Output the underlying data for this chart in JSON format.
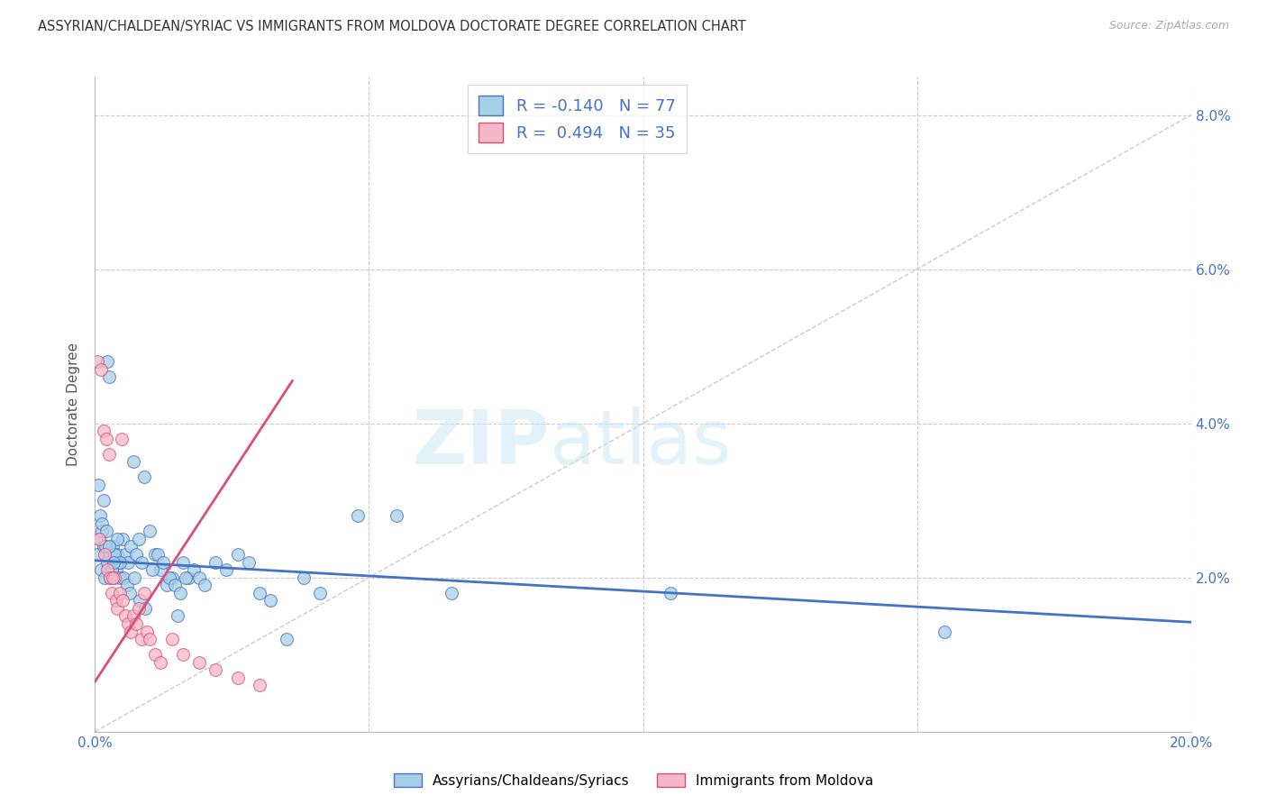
{
  "title": "ASSYRIAN/CHALDEAN/SYRIAC VS IMMIGRANTS FROM MOLDOVA DOCTORATE DEGREE CORRELATION CHART",
  "source": "Source: ZipAtlas.com",
  "ylabel": "Doctorate Degree",
  "blue_color": "#a8cfe8",
  "pink_color": "#f4b8c8",
  "trend_blue": "#4472c4",
  "trend_pink": "#d94f7a",
  "xlim": [
    0,
    20
  ],
  "ylim": [
    0,
    8.5
  ],
  "legend1_r": "R = -0.140",
  "legend1_n": "N = 77",
  "legend2_r": "R =  0.494",
  "legend2_n": "N = 35",
  "blue_scatter_x": [
    0.05,
    0.08,
    0.1,
    0.12,
    0.15,
    0.18,
    0.22,
    0.25,
    0.28,
    0.3,
    0.32,
    0.35,
    0.38,
    0.4,
    0.42,
    0.45,
    0.5,
    0.55,
    0.6,
    0.65,
    0.7,
    0.75,
    0.8,
    0.85,
    0.9,
    1.0,
    1.1,
    1.2,
    1.3,
    1.4,
    1.5,
    1.6,
    1.7,
    1.8,
    1.9,
    2.0,
    2.2,
    2.4,
    2.6,
    2.8,
    3.0,
    3.2,
    3.5,
    3.8,
    4.1,
    4.8,
    5.5,
    6.5,
    10.5,
    15.5,
    0.06,
    0.09,
    0.13,
    0.16,
    0.19,
    0.23,
    0.27,
    0.31,
    0.36,
    0.41,
    0.46,
    0.52,
    0.58,
    0.64,
    0.72,
    0.82,
    0.92,
    1.05,
    1.15,
    1.25,
    1.35,
    1.45,
    1.55,
    1.65,
    0.2,
    0.26,
    0.33
  ],
  "blue_scatter_y": [
    2.3,
    2.5,
    2.1,
    2.6,
    2.4,
    2.0,
    4.8,
    4.6,
    2.3,
    2.1,
    2.4,
    2.2,
    2.1,
    2.3,
    2.2,
    2.0,
    2.5,
    2.3,
    2.2,
    2.4,
    3.5,
    2.3,
    2.5,
    2.2,
    3.3,
    2.6,
    2.3,
    2.1,
    1.9,
    2.0,
    1.5,
    2.2,
    2.0,
    2.1,
    2.0,
    1.9,
    2.2,
    2.1,
    2.3,
    2.2,
    1.8,
    1.7,
    1.2,
    2.0,
    1.8,
    2.8,
    2.8,
    1.8,
    1.8,
    1.3,
    3.2,
    2.8,
    2.7,
    3.0,
    2.4,
    2.2,
    2.0,
    2.1,
    2.3,
    2.5,
    2.2,
    2.0,
    1.9,
    1.8,
    2.0,
    1.7,
    1.6,
    2.1,
    2.3,
    2.2,
    2.0,
    1.9,
    1.8,
    2.0,
    2.6,
    2.4,
    2.2
  ],
  "pink_scatter_x": [
    0.05,
    0.1,
    0.15,
    0.2,
    0.22,
    0.25,
    0.28,
    0.3,
    0.35,
    0.38,
    0.4,
    0.45,
    0.5,
    0.55,
    0.6,
    0.65,
    0.7,
    0.75,
    0.8,
    0.85,
    0.9,
    0.95,
    1.0,
    1.1,
    1.2,
    1.4,
    1.6,
    1.9,
    2.2,
    2.6,
    3.0,
    0.08,
    0.18,
    0.32,
    0.48
  ],
  "pink_scatter_y": [
    4.8,
    4.7,
    3.9,
    3.8,
    2.1,
    3.6,
    2.0,
    1.8,
    2.0,
    1.7,
    1.6,
    1.8,
    1.7,
    1.5,
    1.4,
    1.3,
    1.5,
    1.4,
    1.6,
    1.2,
    1.8,
    1.3,
    1.2,
    1.0,
    0.9,
    1.2,
    1.0,
    0.9,
    0.8,
    0.7,
    0.6,
    2.5,
    2.3,
    2.0,
    3.8
  ],
  "blue_trend_x": [
    0,
    20
  ],
  "blue_trend_y": [
    2.22,
    1.42
  ],
  "pink_trend_x": [
    0.0,
    3.6
  ],
  "pink_trend_y": [
    0.65,
    4.55
  ],
  "ref_line_x": [
    0,
    20
  ],
  "ref_line_y": [
    0,
    8.0
  ],
  "ytick_positions": [
    0,
    2,
    4,
    6,
    8
  ],
  "ytick_labels_right": [
    "",
    "2.0%",
    "4.0%",
    "6.0%",
    "8.0%"
  ],
  "xtick_positions": [
    0,
    5,
    10,
    15,
    20
  ],
  "xtick_labels": [
    "0.0%",
    "",
    "",
    "",
    "20.0%"
  ]
}
